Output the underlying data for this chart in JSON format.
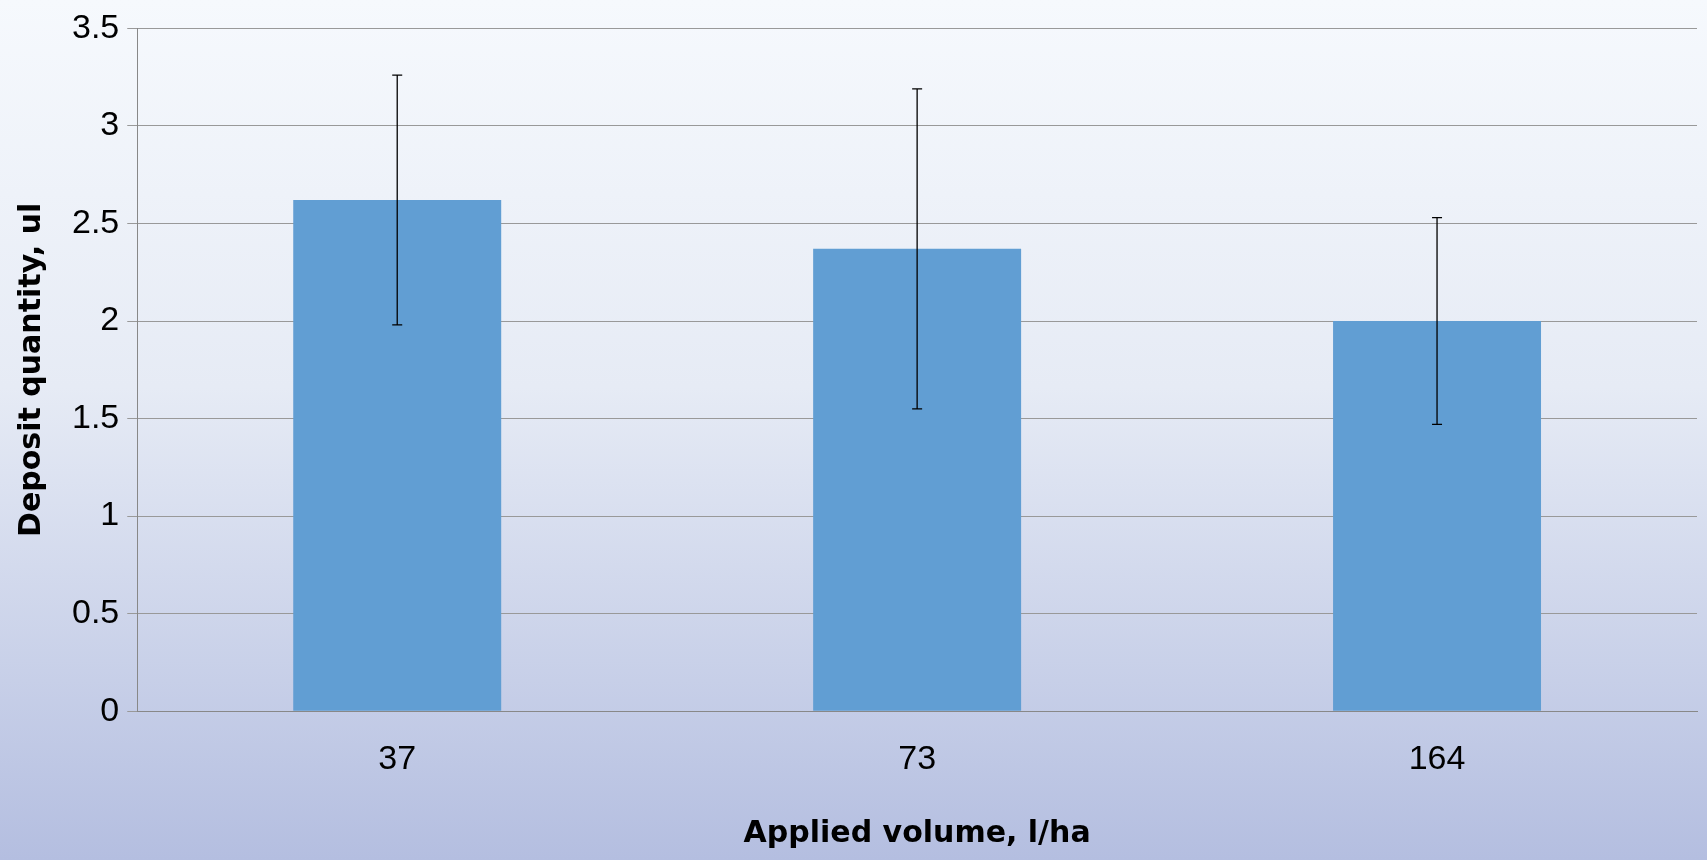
{
  "chart_data": {
    "type": "bar",
    "xlabel": "Applied volume, l/ha",
    "ylabel": "Deposit quantity, ul",
    "categories": [
      "37",
      "73",
      "164"
    ],
    "values": [
      2.62,
      2.37,
      2.0
    ],
    "errors": [
      0.64,
      0.82,
      0.53
    ],
    "color": "#619ed3",
    "ylim": [
      0,
      3.5
    ],
    "yticks": [
      0,
      0.5,
      1,
      1.5,
      2,
      2.5,
      3,
      3.5
    ],
    "grid": "y",
    "legend": false
  }
}
